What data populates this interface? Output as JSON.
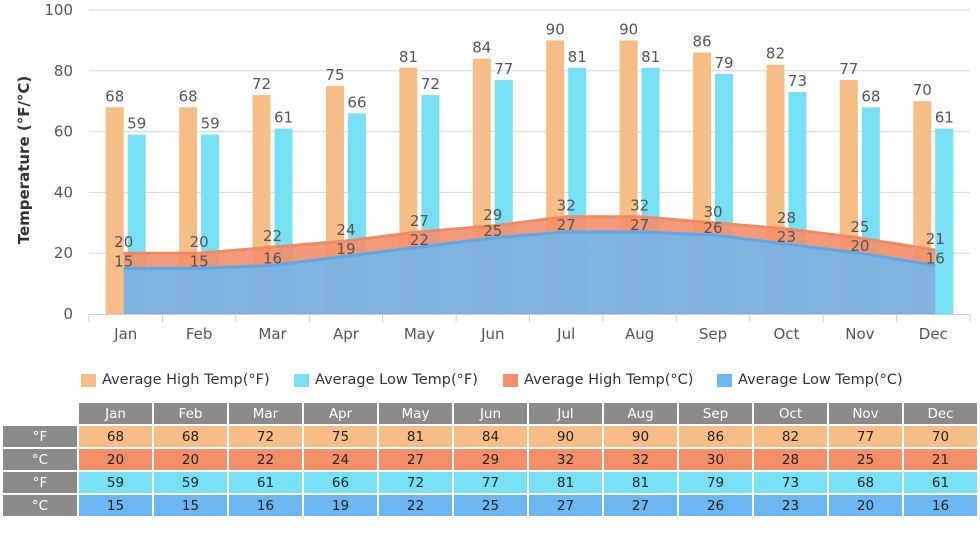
{
  "chart_data": {
    "type": "bar",
    "title": "",
    "ylabel": "Temperature (°F/°C)",
    "xlabel": "",
    "ylim": [
      0,
      100
    ],
    "yticks": [
      0,
      20,
      40,
      60,
      80,
      100
    ],
    "grid": true,
    "legend_position": "bottom",
    "categories": [
      "Jan",
      "Feb",
      "Mar",
      "Apr",
      "May",
      "Jun",
      "Jul",
      "Aug",
      "Sep",
      "Oct",
      "Nov",
      "Dec"
    ],
    "series": [
      {
        "name": "Average High Temp(°F)",
        "type": "bar",
        "color": "#f7bd87",
        "values": [
          68,
          68,
          72,
          75,
          81,
          84,
          90,
          90,
          86,
          82,
          77,
          70
        ]
      },
      {
        "name": "Average Low Temp(°F)",
        "type": "bar",
        "color": "#78e0f4",
        "values": [
          59,
          59,
          61,
          66,
          72,
          77,
          81,
          81,
          79,
          73,
          68,
          61
        ]
      },
      {
        "name": "Average High Temp(°C)",
        "type": "area",
        "color": "#f38f69",
        "values": [
          20,
          20,
          22,
          24,
          27,
          29,
          32,
          32,
          30,
          28,
          25,
          21
        ]
      },
      {
        "name": "Average Low Temp(°C)",
        "type": "area",
        "color": "#6cb7f1",
        "values": [
          15,
          15,
          16,
          19,
          22,
          25,
          27,
          27,
          26,
          23,
          20,
          16
        ]
      }
    ]
  },
  "table": {
    "months": [
      "Jan",
      "Feb",
      "Mar",
      "Apr",
      "May",
      "Jun",
      "Jul",
      "Aug",
      "Sep",
      "Oct",
      "Nov",
      "Dec"
    ],
    "rows": [
      {
        "unit": "°F",
        "values": [
          "68",
          "68",
          "72",
          "75",
          "81",
          "84",
          "90",
          "90",
          "86",
          "82",
          "77",
          "70"
        ]
      },
      {
        "unit": "°C",
        "values": [
          "20",
          "20",
          "22",
          "24",
          "27",
          "29",
          "32",
          "32",
          "30",
          "28",
          "25",
          "21"
        ]
      },
      {
        "unit": "°F",
        "values": [
          "59",
          "59",
          "61",
          "66",
          "72",
          "77",
          "81",
          "81",
          "79",
          "73",
          "68",
          "61"
        ]
      },
      {
        "unit": "°C",
        "values": [
          "15",
          "15",
          "16",
          "19",
          "22",
          "25",
          "27",
          "27",
          "26",
          "23",
          "20",
          "16"
        ]
      }
    ]
  }
}
